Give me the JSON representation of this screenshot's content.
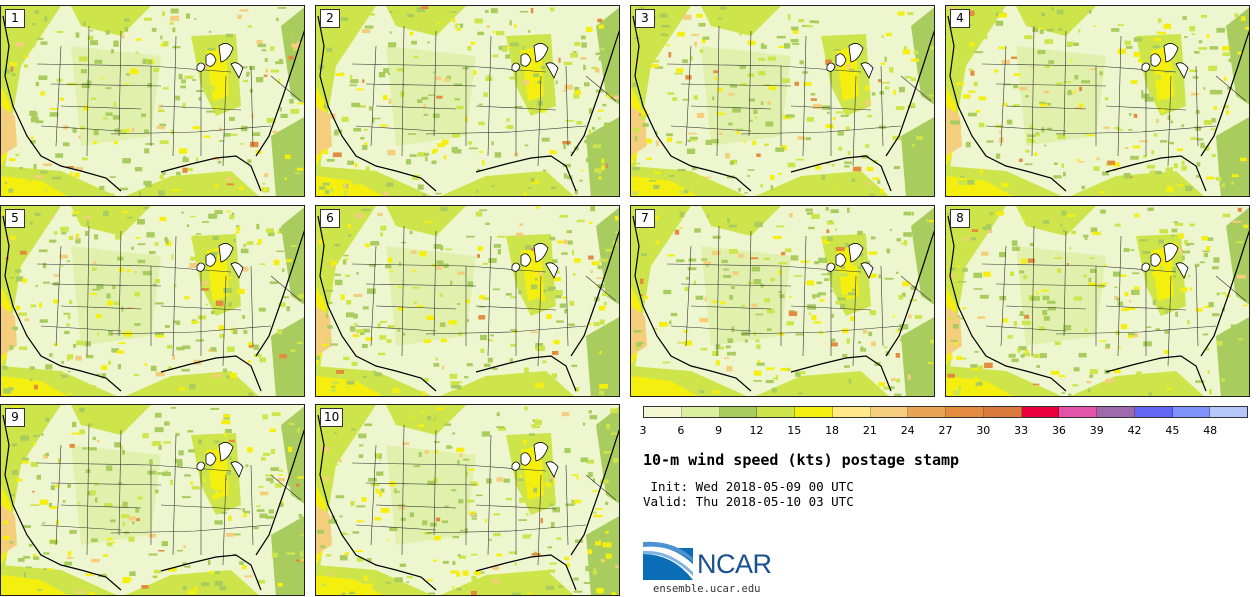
{
  "panels": [
    {
      "number": "1"
    },
    {
      "number": "2"
    },
    {
      "number": "3"
    },
    {
      "number": "4"
    },
    {
      "number": "5"
    },
    {
      "number": "6"
    },
    {
      "number": "7"
    },
    {
      "number": "8"
    },
    {
      "number": "9"
    },
    {
      "number": "10"
    }
  ],
  "legend": {
    "colors": [
      "#f3f7d2",
      "#dcef9e",
      "#a9cc5f",
      "#cde54a",
      "#f5ef10",
      "#fde98a",
      "#f4ce7c",
      "#eba455",
      "#e38c40",
      "#da7a3e",
      "#e9003c",
      "#e254a8",
      "#9e6aac",
      "#6366f3",
      "#7f93fb",
      "#b6c7fc"
    ],
    "tick_labels": [
      "3",
      "6",
      "9",
      "12",
      "15",
      "18",
      "21",
      "24",
      "27",
      "30",
      "33",
      "36",
      "39",
      "42",
      "45",
      "48"
    ]
  },
  "title": "10-m wind speed (kts) postage stamp",
  "init_line": " Init: Wed 2018-05-09 00 UTC",
  "valid_line": "Valid: Thu 2018-05-10 03 UTC",
  "logo": {
    "word": "NCAR",
    "url": "ensemble.ucar.edu"
  }
}
